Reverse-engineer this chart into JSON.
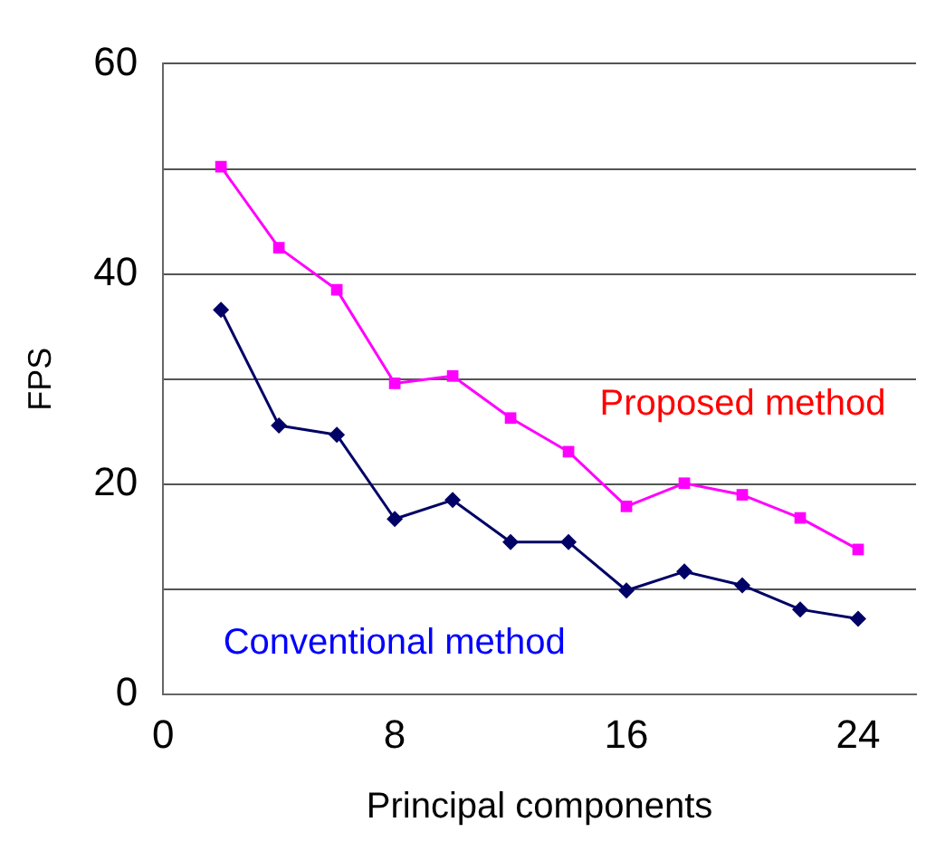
{
  "chart_data": {
    "type": "line",
    "xlabel": "Principal components",
    "ylabel": "FPS",
    "xlim": [
      0,
      26
    ],
    "xticks": [
      0,
      8,
      16,
      24
    ],
    "ylim": [
      0,
      60
    ],
    "yticks": [
      0,
      {
        "value": 10,
        "label": null
      },
      20,
      {
        "value": 30,
        "label": null
      },
      40,
      {
        "value": 50,
        "label": null
      },
      60
    ],
    "grid": "y",
    "legend": false,
    "series": [
      {
        "name": "Proposed method",
        "color": "#ff00ff",
        "marker": "square",
        "x": [
          2,
          4,
          6,
          8,
          10,
          12,
          14,
          16,
          18,
          20,
          22,
          24
        ],
        "values": [
          50.2,
          42.5,
          38.5,
          29.6,
          30.3,
          26.3,
          23.1,
          17.9,
          20.1,
          19,
          16.8,
          13.8
        ]
      },
      {
        "name": "Conventional method",
        "color": "#000066",
        "marker": "diamond",
        "x": [
          2,
          4,
          6,
          8,
          10,
          12,
          14,
          16,
          18,
          20,
          22,
          24
        ],
        "values": [
          36.6,
          25.6,
          24.7,
          16.7,
          18.5,
          14.5,
          14.5,
          9.9,
          11.7,
          10.4,
          8.1,
          7.2
        ]
      }
    ]
  }
}
